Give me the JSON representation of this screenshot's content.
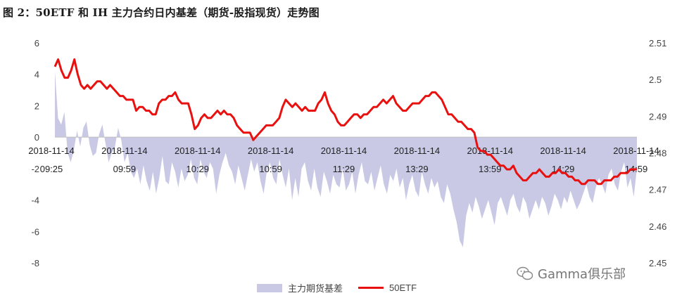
{
  "header": {
    "title": "图 2：50ETF 和 IH 主力合约日内基差（期货-股指现货）走势图"
  },
  "legend": {
    "basis_label": "主力期货基差",
    "etf_label": "50ETF"
  },
  "watermark": {
    "text": "Gamma俱乐部"
  },
  "colors": {
    "basis_fill": "#c9c9e6",
    "etf_line": "#e8110f"
  },
  "chart_data": {
    "type": "line",
    "title": "图 2：50ETF 和 IH 主力合约日内基差（期货-股指现货）走势图",
    "x_tick_labels": [
      [
        "2018-11-14",
        "09:25"
      ],
      [
        "2018-11-14",
        "09:59"
      ],
      [
        "2018-11-14",
        "10:29"
      ],
      [
        "2018-11-14",
        "10:59"
      ],
      [
        "2018-11-14",
        "11:29"
      ],
      [
        "2018-11-14",
        "13:29"
      ],
      [
        "2018-11-14",
        "13:59"
      ],
      [
        "2018-11-14",
        "14:29"
      ],
      [
        "2018-11-14",
        "14:59"
      ]
    ],
    "y_left": {
      "ylim": [
        -8,
        6
      ],
      "ticks": [
        -8,
        -6,
        -4,
        -2,
        0,
        2,
        4,
        6
      ]
    },
    "y_right": {
      "ylim": [
        2.45,
        2.51
      ],
      "ticks": [
        2.45,
        2.46,
        2.47,
        2.48,
        2.49,
        2.5,
        2.51
      ]
    },
    "grid": false,
    "legend_position": "bottom",
    "series": [
      {
        "name": "主力期货基差",
        "type": "area",
        "axis": "left",
        "values": [
          4.2,
          1.2,
          0.8,
          1.6,
          -1.0,
          -1.6,
          -0.8,
          0.4,
          -0.6,
          0.6,
          1.0,
          -0.5,
          -1.2,
          -1.0,
          0.2,
          0.8,
          -0.4,
          -1.6,
          -1.0,
          -0.6,
          0.6,
          -0.2,
          -1.6,
          -1.0,
          -2.2,
          -2.6,
          -2.0,
          -3.0,
          -1.8,
          -2.8,
          -3.4,
          -2.2,
          -3.6,
          -2.6,
          -1.2,
          -2.8,
          -3.0,
          -1.6,
          -2.2,
          -3.2,
          -2.0,
          -2.8,
          -2.4,
          -1.4,
          -2.6,
          -3.0,
          -1.4,
          -2.2,
          -2.6,
          -1.6,
          -2.0,
          -3.6,
          -2.4,
          -1.6,
          -1.0,
          -1.8,
          -2.2,
          -3.0,
          -1.8,
          -2.6,
          -3.4,
          -2.4,
          -1.4,
          -2.2,
          -1.6,
          -2.8,
          -3.6,
          -2.2,
          -1.6,
          -2.6,
          -3.0,
          -1.4,
          -2.4,
          -3.2,
          -2.0,
          -4.0,
          -2.6,
          -3.8,
          -2.0,
          -1.6,
          -2.8,
          -3.4,
          -2.0,
          -3.2,
          -3.8,
          -2.2,
          -2.8,
          -3.6,
          -2.4,
          -3.0,
          -3.2,
          -2.0,
          -3.4,
          -3.0,
          -2.2,
          -3.6,
          -2.4,
          -1.6,
          -2.8,
          -3.0,
          -2.2,
          -3.4,
          -2.6,
          -1.8,
          -3.0,
          -3.6,
          -2.4,
          -2.8,
          -2.0,
          -3.2,
          -2.6,
          -4.0,
          -3.0,
          -2.4,
          -3.4,
          -3.8,
          -2.2,
          -3.0,
          -3.6,
          -2.6,
          -3.2,
          -2.8,
          -3.8,
          -4.2,
          -3.0,
          -3.6,
          -4.6,
          -5.4,
          -6.6,
          -7.0,
          -5.0,
          -4.2,
          -4.8,
          -3.8,
          -4.4,
          -5.2,
          -4.6,
          -4.0,
          -4.8,
          -5.6,
          -4.2,
          -3.8,
          -4.4,
          -5.0,
          -4.0,
          -3.6,
          -4.4,
          -4.8,
          -3.8,
          -4.2,
          -5.2,
          -4.6,
          -4.0,
          -4.6,
          -3.8,
          -4.2,
          -5.0,
          -4.4,
          -3.6,
          -4.0,
          -4.6,
          -3.8,
          -4.2,
          -3.4,
          -4.0,
          -4.6,
          -4.2,
          -3.6,
          -3.0,
          -3.8,
          -4.2,
          -3.2,
          -2.6,
          -3.0,
          -3.6,
          -2.4,
          -2.0,
          -3.0,
          -3.4,
          -2.2,
          -1.6,
          -3.2,
          -2.6,
          -3.8,
          -2.0
        ]
      },
      {
        "name": "50ETF",
        "type": "line",
        "axis": "right",
        "values": [
          2.5035,
          2.5055,
          2.5025,
          2.5005,
          2.5005,
          2.5025,
          2.5055,
          2.5015,
          2.4985,
          2.4975,
          2.4985,
          2.4975,
          2.4985,
          2.4995,
          2.4995,
          2.4985,
          2.4975,
          2.4985,
          2.4975,
          2.4965,
          2.4955,
          2.4955,
          2.4945,
          2.4945,
          2.4945,
          2.4915,
          2.4925,
          2.4925,
          2.4915,
          2.4915,
          2.4905,
          2.4905,
          2.4935,
          2.4945,
          2.4945,
          2.4955,
          2.4955,
          2.4965,
          2.4945,
          2.4935,
          2.4935,
          2.4935,
          2.4905,
          2.4865,
          2.4875,
          2.4895,
          2.4905,
          2.4895,
          2.4895,
          2.4905,
          2.4915,
          2.4905,
          2.4915,
          2.4905,
          2.4905,
          2.4895,
          2.4875,
          2.4865,
          2.4855,
          2.4855,
          2.4855,
          2.4835,
          2.4845,
          2.4855,
          2.4865,
          2.4875,
          2.4875,
          2.4875,
          2.4885,
          2.4895,
          2.4925,
          2.4945,
          2.4935,
          2.4925,
          2.4935,
          2.4925,
          2.4915,
          2.4925,
          2.4915,
          2.4915,
          2.4915,
          2.4935,
          2.4945,
          2.4965,
          2.4935,
          2.4915,
          2.4905,
          2.4885,
          2.4875,
          2.4875,
          2.4885,
          2.4895,
          2.4905,
          2.4905,
          2.4895,
          2.4905,
          2.4905,
          2.4915,
          2.4925,
          2.4925,
          2.4935,
          2.4945,
          2.4935,
          2.4945,
          2.4955,
          2.4935,
          2.4925,
          2.4915,
          2.4915,
          2.4925,
          2.4935,
          2.4935,
          2.4935,
          2.4945,
          2.4955,
          2.4955,
          2.4965,
          2.4965,
          2.4955,
          2.4945,
          2.4925,
          2.4905,
          2.4905,
          2.4895,
          2.4885,
          2.4885,
          2.4875,
          2.4865,
          2.4865,
          2.4855,
          2.4815,
          2.4805,
          2.4805,
          2.4795,
          2.4795,
          2.4785,
          2.4775,
          2.4765,
          2.4765,
          2.4755,
          2.4755,
          2.4765,
          2.4745,
          2.4735,
          2.4725,
          2.4725,
          2.4735,
          2.4745,
          2.4745,
          2.4755,
          2.4745,
          2.4735,
          2.4735,
          2.4745,
          2.4745,
          2.4755,
          2.4745,
          2.4745,
          2.4735,
          2.4735,
          2.4725,
          2.4725,
          2.4715,
          2.4715,
          2.4725,
          2.4725,
          2.4725,
          2.4715,
          2.4715,
          2.4725,
          2.4725,
          2.4725,
          2.4735,
          2.4735,
          2.4745,
          2.4745,
          2.4745,
          2.4755,
          2.4755,
          2.4755
        ]
      }
    ]
  }
}
